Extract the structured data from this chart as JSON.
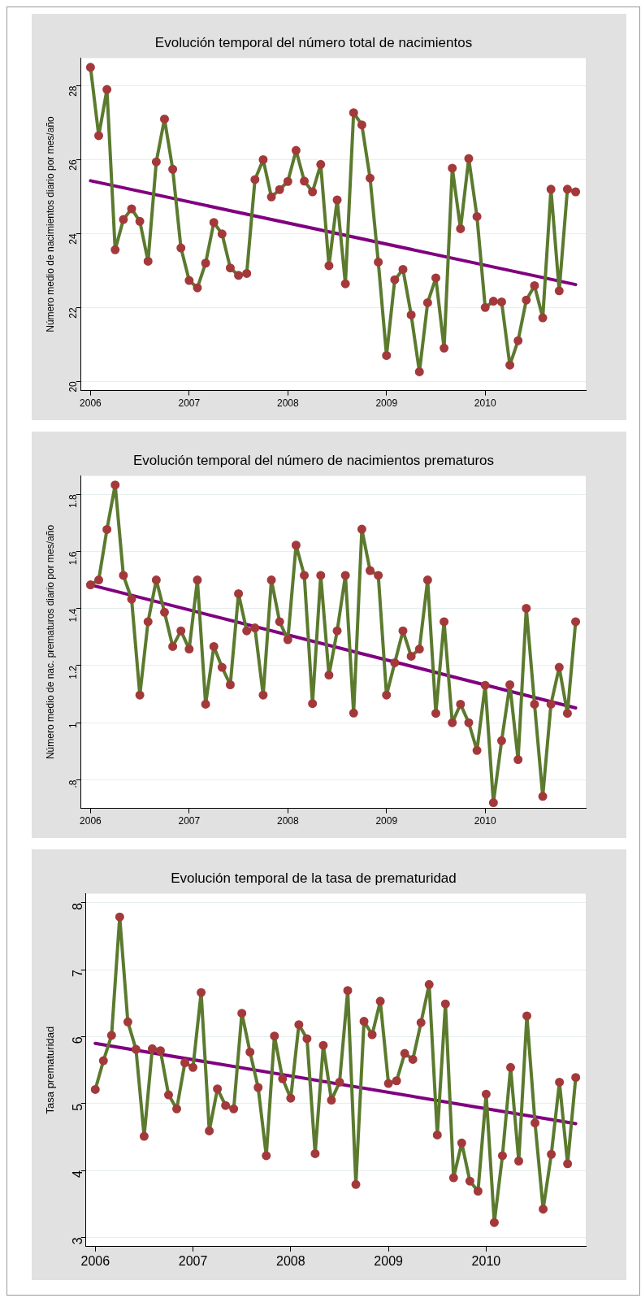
{
  "chart_data": [
    {
      "type": "line",
      "title": "Evolución temporal del número total de nacimientos",
      "ylabel": "Número medio de nacimientos diario por mes/año",
      "xlim": [
        "2005-11-27",
        "2011-01-08"
      ],
      "xticks": [
        "2006",
        "2007",
        "2008",
        "2009",
        "2010"
      ],
      "ylim": [
        19.75,
        28.75
      ],
      "yticks": [
        20,
        22,
        24,
        26,
        28
      ],
      "grid": "y",
      "legend": false,
      "line_style": "solid",
      "series": [
        {
          "type": "line",
          "color": "#5b7a2e",
          "marker": "circle",
          "colors": [
            "#a3393b",
            "#a3393b",
            "#a3393b",
            "#a3393b",
            "#a3393b",
            "#a3393b",
            "#a3393b",
            "#a3393b",
            "#a3393b",
            "#a3393b",
            "#a3393b",
            "#a3393b",
            "#a3393b",
            "#a3393b",
            "#a3393b",
            "#a3393b",
            "#a3393b",
            "#a3393b",
            "#a3393b",
            "#a3393b",
            "#a3393b",
            "#a3393b",
            "#a3393b",
            "#a3393b",
            "#a3393b",
            "#a3393b",
            "#a3393b",
            "#a3393b",
            "#a3393b",
            "#a3393b",
            "#a3393b",
            "#a3393b",
            "#a3393b",
            "#a3393b",
            "#a3393b",
            "#a3393b",
            "#a3393b",
            "#a3393b",
            "#a3393b",
            "#a3393b",
            "#a3393b",
            "#a3393b",
            "#a3393b",
            "#a3393b",
            "#a3393b",
            "#a3393b",
            "#a3393b",
            "#a3393b",
            "#a3393b",
            "#a3393b",
            "#a3393b",
            "#a3393b",
            "#a3393b",
            "#a3393b",
            "#a3393b",
            "#a3393b",
            "#a3393b",
            "#a3393b",
            "#a3393b",
            "#a3393b"
          ],
          "x": [
            "2006-01",
            "2006-02",
            "2006-03",
            "2006-04",
            "2006-05",
            "2006-06",
            "2006-07",
            "2006-08",
            "2006-09",
            "2006-10",
            "2006-11",
            "2006-12",
            "2007-01",
            "2007-02",
            "2007-03",
            "2007-04",
            "2007-05",
            "2007-06",
            "2007-07",
            "2007-08",
            "2007-09",
            "2007-10",
            "2007-11",
            "2007-12",
            "2008-01",
            "2008-02",
            "2008-03",
            "2008-04",
            "2008-05",
            "2008-06",
            "2008-07",
            "2008-08",
            "2008-09",
            "2008-10",
            "2008-11",
            "2008-12",
            "2009-01",
            "2009-02",
            "2009-03",
            "2009-04",
            "2009-05",
            "2009-06",
            "2009-07",
            "2009-08",
            "2009-09",
            "2009-10",
            "2009-11",
            "2009-12",
            "2010-01",
            "2010-02",
            "2010-03",
            "2010-04",
            "2010-05",
            "2010-06",
            "2010-07",
            "2010-08",
            "2010-09",
            "2010-10",
            "2010-11",
            "2010-12"
          ],
          "values": [
            28.5,
            26.65,
            27.9,
            23.56,
            24.38,
            24.67,
            24.33,
            23.25,
            25.94,
            27.1,
            25.74,
            23.61,
            22.73,
            22.53,
            23.2,
            24.3,
            23.99,
            23.07,
            22.87,
            22.92,
            25.46,
            26.0,
            24.99,
            25.19,
            25.41,
            26.25,
            25.42,
            25.13,
            25.87,
            23.13,
            24.91,
            22.64,
            27.27,
            26.94,
            25.5,
            23.23,
            20.7,
            22.75,
            23.03,
            21.8,
            20.26,
            22.13,
            22.8,
            20.9,
            25.77,
            24.13,
            26.03,
            24.46,
            22.0,
            22.17,
            22.15,
            20.44,
            21.1,
            22.2,
            22.59,
            21.72,
            25.2,
            22.45,
            25.2,
            25.13
          ]
        },
        {
          "type": "line",
          "color": "#800080",
          "marker": "none",
          "x": [
            "2006-01",
            "2010-12"
          ],
          "values": [
            25.43,
            22.62
          ]
        }
      ]
    },
    {
      "type": "line",
      "title": "Evolución temporal del número de nacimientos prematuros",
      "ylabel": "Número medio de nac. prematuros diario por mes/año",
      "xlim": [
        "2005-11-27",
        "2011-01-08"
      ],
      "xticks": [
        "2006",
        "2007",
        "2008",
        "2009",
        "2010"
      ],
      "ylim": [
        0.7,
        1.865
      ],
      "yticks": [
        {
          "value": 0.8,
          "label": ".8"
        },
        1,
        1.2,
        1.4,
        1.6,
        1.8
      ],
      "grid": "y",
      "legend": false,
      "line_style": "solid",
      "series": [
        {
          "type": "line",
          "color": "#5b7a2e",
          "marker": "circle",
          "colors": [
            "#a3393b",
            "#a3393b",
            "#a3393b",
            "#a3393b",
            "#a3393b",
            "#a3393b",
            "#a3393b",
            "#a3393b",
            "#a3393b",
            "#a3393b",
            "#a3393b",
            "#a3393b",
            "#a3393b",
            "#a3393b",
            "#a3393b",
            "#a3393b",
            "#a3393b",
            "#a3393b",
            "#a3393b",
            "#a3393b",
            "#a3393b",
            "#a3393b",
            "#a3393b",
            "#a3393b",
            "#a3393b",
            "#a3393b",
            "#a3393b",
            "#a3393b",
            "#a3393b",
            "#a3393b",
            "#a3393b",
            "#a3393b",
            "#a3393b",
            "#a3393b",
            "#a3393b",
            "#a3393b",
            "#a3393b",
            "#a3393b",
            "#a3393b",
            "#a3393b",
            "#a3393b",
            "#a3393b",
            "#a3393b",
            "#a3393b",
            "#a3393b",
            "#a3393b",
            "#a3393b",
            "#a3393b",
            "#a3393b",
            "#a3393b",
            "#a3393b",
            "#a3393b",
            "#a3393b",
            "#a3393b",
            "#a3393b",
            "#a3393b",
            "#a3393b",
            "#a3393b",
            "#a3393b",
            "#a3393b"
          ],
          "x": [
            "2006-01",
            "2006-02",
            "2006-03",
            "2006-04",
            "2006-05",
            "2006-06",
            "2006-07",
            "2006-08",
            "2006-09",
            "2006-10",
            "2006-11",
            "2006-12",
            "2007-01",
            "2007-02",
            "2007-03",
            "2007-04",
            "2007-05",
            "2007-06",
            "2007-07",
            "2007-08",
            "2007-09",
            "2007-10",
            "2007-11",
            "2007-12",
            "2008-01",
            "2008-02",
            "2008-03",
            "2008-04",
            "2008-05",
            "2008-06",
            "2008-07",
            "2008-08",
            "2008-09",
            "2008-10",
            "2008-11",
            "2008-12",
            "2009-01",
            "2009-02",
            "2009-03",
            "2009-04",
            "2009-05",
            "2009-06",
            "2009-07",
            "2009-08",
            "2009-09",
            "2009-10",
            "2009-11",
            "2009-12",
            "2010-01",
            "2010-02",
            "2010-03",
            "2010-04",
            "2010-05",
            "2010-06",
            "2010-07",
            "2010-08",
            "2010-09",
            "2010-10",
            "2010-11",
            "2010-12"
          ],
          "values": [
            1.483,
            1.5,
            1.677,
            1.833,
            1.516,
            1.433,
            1.097,
            1.354,
            1.5,
            1.387,
            1.267,
            1.322,
            1.258,
            1.5,
            1.065,
            1.267,
            1.194,
            1.133,
            1.452,
            1.322,
            1.332,
            1.097,
            1.5,
            1.354,
            1.291,
            1.622,
            1.516,
            1.067,
            1.516,
            1.167,
            1.322,
            1.516,
            1.034,
            1.678,
            1.533,
            1.516,
            1.097,
            1.21,
            1.322,
            1.233,
            1.258,
            1.5,
            1.033,
            1.354,
            1.0,
            1.065,
            1.0,
            0.903,
            1.131,
            0.72,
            0.937,
            1.133,
            0.871,
            1.401,
            1.065,
            0.742,
            1.065,
            1.194,
            1.033,
            1.354
          ]
        },
        {
          "type": "line",
          "color": "#800080",
          "marker": "none",
          "x": [
            "2006-01",
            "2010-12"
          ],
          "values": [
            1.483,
            1.052
          ]
        }
      ]
    },
    {
      "type": "line",
      "title": "Evolución temporal de la tasa de prematuridad",
      "ylabel": "Tasa prematuridad",
      "xlim": [
        "2005-11-27",
        "2011-01-08"
      ],
      "xticks": [
        "2006",
        "2007",
        "2008",
        "2009",
        "2010"
      ],
      "ylim": [
        2.86,
        8.14
      ],
      "yticks": [
        3,
        4,
        5,
        6,
        7,
        8
      ],
      "grid": "y",
      "legend": false,
      "line_style": "solid",
      "series": [
        {
          "type": "line",
          "color": "#5b7a2e",
          "marker": "circle",
          "colors": [
            "#a3393b",
            "#a3393b",
            "#a3393b",
            "#a3393b",
            "#a3393b",
            "#a3393b",
            "#a3393b",
            "#a3393b",
            "#a3393b",
            "#a3393b",
            "#a3393b",
            "#a3393b",
            "#a3393b",
            "#a3393b",
            "#a3393b",
            "#a3393b",
            "#a3393b",
            "#a3393b",
            "#a3393b",
            "#a3393b",
            "#a3393b",
            "#a3393b",
            "#a3393b",
            "#a3393b",
            "#a3393b",
            "#a3393b",
            "#a3393b",
            "#a3393b",
            "#a3393b",
            "#a3393b",
            "#a3393b",
            "#a3393b",
            "#a3393b",
            "#a3393b",
            "#a3393b",
            "#a3393b",
            "#a3393b",
            "#a3393b",
            "#a3393b",
            "#a3393b",
            "#a3393b",
            "#a3393b",
            "#a3393b",
            "#a3393b",
            "#a3393b",
            "#a3393b",
            "#a3393b",
            "#a3393b",
            "#a3393b",
            "#a3393b",
            "#a3393b",
            "#a3393b",
            "#a3393b",
            "#a3393b",
            "#a3393b",
            "#a3393b",
            "#a3393b",
            "#a3393b",
            "#a3393b",
            "#a3393b"
          ],
          "x": [
            "2006-01",
            "2006-02",
            "2006-03",
            "2006-04",
            "2006-05",
            "2006-06",
            "2006-07",
            "2006-08",
            "2006-09",
            "2006-10",
            "2006-11",
            "2006-12",
            "2007-01",
            "2007-02",
            "2007-03",
            "2007-04",
            "2007-05",
            "2007-06",
            "2007-07",
            "2007-08",
            "2007-09",
            "2007-10",
            "2007-11",
            "2007-12",
            "2008-01",
            "2008-02",
            "2008-03",
            "2008-04",
            "2008-05",
            "2008-06",
            "2008-07",
            "2008-08",
            "2008-09",
            "2008-10",
            "2008-11",
            "2008-12",
            "2009-01",
            "2009-02",
            "2009-03",
            "2009-04",
            "2009-05",
            "2009-06",
            "2009-07",
            "2009-08",
            "2009-09",
            "2009-10",
            "2009-11",
            "2009-12",
            "2010-01",
            "2010-02",
            "2010-03",
            "2010-04",
            "2010-05",
            "2010-06",
            "2010-07",
            "2010-08",
            "2010-09",
            "2010-10",
            "2010-11",
            "2010-12"
          ],
          "values": [
            5.21,
            5.64,
            6.02,
            7.79,
            6.22,
            5.81,
            4.51,
            5.82,
            5.79,
            5.13,
            4.92,
            5.61,
            5.54,
            6.66,
            4.59,
            5.22,
            4.97,
            4.92,
            6.35,
            5.77,
            5.24,
            4.22,
            6.01,
            5.37,
            5.08,
            6.18,
            5.97,
            4.25,
            5.87,
            5.05,
            5.32,
            6.69,
            3.79,
            6.23,
            6.03,
            6.53,
            5.3,
            5.34,
            5.75,
            5.66,
            6.21,
            6.78,
            4.53,
            6.49,
            3.89,
            4.41,
            3.84,
            3.69,
            5.14,
            3.22,
            4.22,
            5.54,
            4.14,
            6.31,
            4.71,
            3.42,
            4.24,
            5.32,
            4.1,
            5.39
          ]
        },
        {
          "type": "line",
          "color": "#800080",
          "marker": "none",
          "x": [
            "2006-01",
            "2010-12"
          ],
          "values": [
            5.9,
            4.7
          ]
        }
      ]
    }
  ]
}
